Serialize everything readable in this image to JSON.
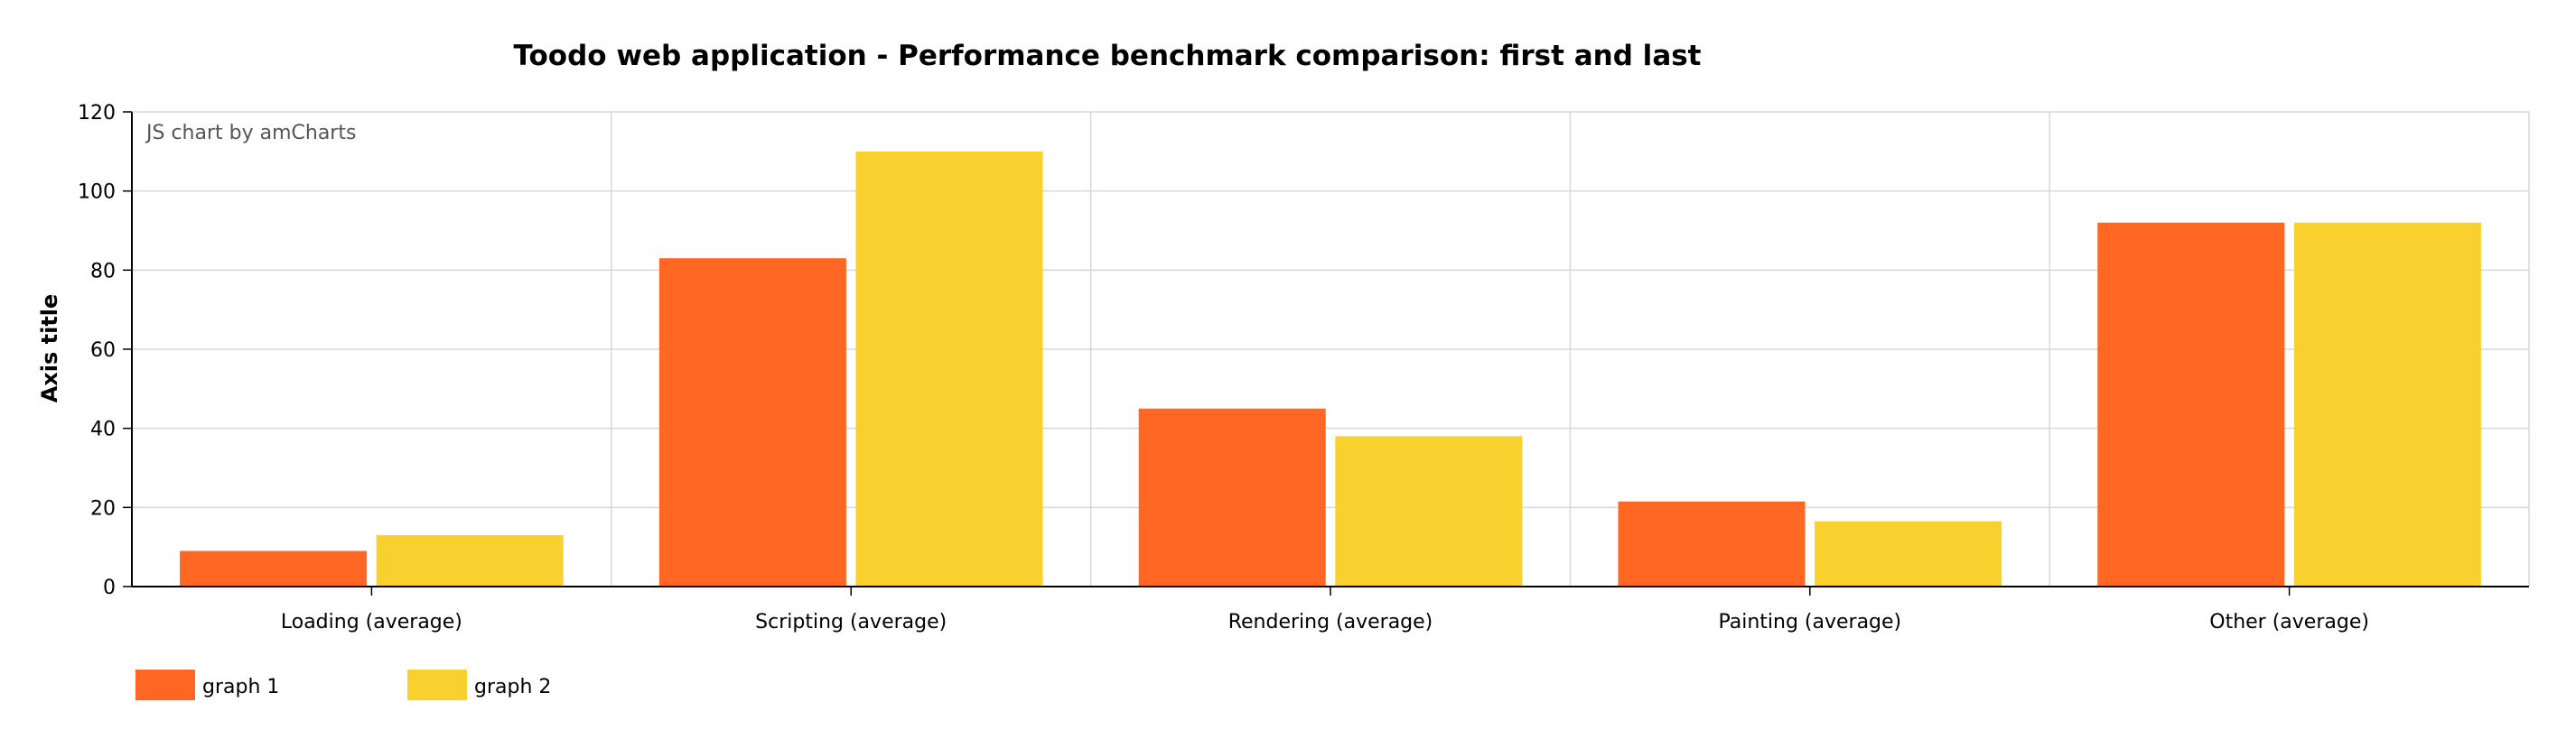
{
  "chart_data": {
    "type": "bar",
    "title": "Toodo web application - Performance benchmark comparison: first and last",
    "xlabel": "",
    "ylabel": "Axis title",
    "ylim": [
      0,
      120
    ],
    "yticks": [
      0,
      20,
      40,
      60,
      80,
      100,
      120
    ],
    "categories": [
      "Loading (average)",
      "Scripting (average)",
      "Rendering (average)",
      "Painting (average)",
      "Other (average)"
    ],
    "series": [
      {
        "name": "graph 1",
        "color": "#FF6722",
        "values": [
          9,
          83,
          45,
          21.5,
          92
        ]
      },
      {
        "name": "graph 2",
        "color": "#F9D12F",
        "values": [
          13,
          110,
          38,
          16.5,
          92
        ]
      }
    ],
    "grid": true,
    "legend": "bottom-left",
    "credit": "JS chart by amCharts"
  }
}
